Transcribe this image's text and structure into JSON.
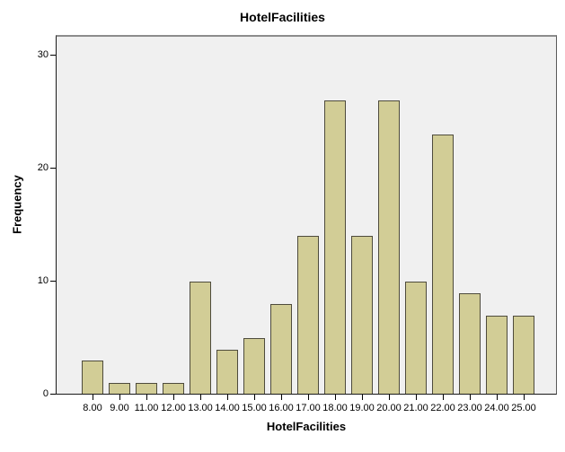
{
  "chart_data": {
    "type": "bar",
    "title": "HotelFacilities",
    "xlabel": "HotelFacilities",
    "ylabel": "Frequency",
    "categories": [
      "8.00",
      "9.00",
      "11.00",
      "12.00",
      "13.00",
      "14.00",
      "15.00",
      "16.00",
      "17.00",
      "18.00",
      "19.00",
      "20.00",
      "21.00",
      "22.00",
      "23.00",
      "24.00",
      "25.00"
    ],
    "values": [
      3,
      1,
      1,
      1,
      10,
      4,
      5,
      8,
      14,
      26,
      14,
      26,
      10,
      23,
      9,
      7,
      7
    ],
    "yticks": [
      0,
      10,
      20,
      30
    ],
    "ylim": [
      0,
      31.8
    ],
    "grid": false,
    "legend": false,
    "plot_bg": "#f0f0f0",
    "bar_fill": "#d2cd96",
    "bar_border": "#4e4b3c",
    "axis_color": "#000000"
  }
}
